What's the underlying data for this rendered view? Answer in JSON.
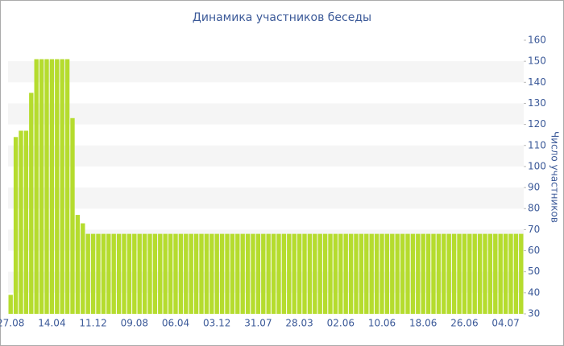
{
  "chart_data": {
    "type": "bar",
    "title": "Динамика участников беседы",
    "y_label": "Число участников",
    "categories": [
      "27.08",
      null,
      null,
      null,
      null,
      null,
      null,
      null,
      "14.04",
      null,
      null,
      null,
      null,
      null,
      null,
      null,
      "11.12",
      null,
      null,
      null,
      null,
      null,
      null,
      null,
      "09.08",
      null,
      null,
      null,
      null,
      null,
      null,
      null,
      "06.04",
      null,
      null,
      null,
      null,
      null,
      null,
      null,
      "03.12",
      null,
      null,
      null,
      null,
      null,
      null,
      null,
      "31.07",
      null,
      null,
      null,
      null,
      null,
      null,
      null,
      "28.03",
      null,
      null,
      null,
      null,
      null,
      null,
      null,
      "02.06",
      null,
      null,
      null,
      null,
      null,
      null,
      null,
      "10.06",
      null,
      null,
      null,
      null,
      null,
      null,
      null,
      "18.06",
      null,
      null,
      null,
      null,
      null,
      null,
      null,
      "26.06",
      null,
      null,
      null,
      null,
      null,
      null,
      null,
      "04.07",
      null,
      null,
      null
    ],
    "values": [
      39,
      114,
      117,
      117,
      135,
      151,
      151,
      151,
      151,
      151,
      151,
      151,
      123,
      77,
      73,
      68,
      68,
      68,
      68,
      68,
      68,
      68,
      68,
      68,
      68,
      68,
      68,
      68,
      68,
      68,
      68,
      68,
      68,
      68,
      68,
      68,
      68,
      68,
      68,
      68,
      68,
      68,
      68,
      68,
      68,
      68,
      68,
      68,
      68,
      68,
      68,
      68,
      68,
      68,
      68,
      68,
      68,
      68,
      68,
      68,
      68,
      68,
      68,
      68,
      68,
      68,
      68,
      68,
      68,
      68,
      68,
      68,
      68,
      68,
      68,
      68,
      68,
      68,
      68,
      68,
      68,
      68,
      68,
      68,
      68,
      68,
      68,
      68,
      68,
      68,
      68,
      68,
      68,
      68,
      68,
      68,
      68,
      68,
      68,
      68
    ],
    "color": "#b5dc2e",
    "ylim": [
      30,
      160
    ],
    "yticks": [
      30,
      40,
      50,
      60,
      70,
      80,
      90,
      100,
      110,
      120,
      130,
      140,
      150,
      160
    ],
    "y_axis_side": "right",
    "grid": "bands"
  }
}
